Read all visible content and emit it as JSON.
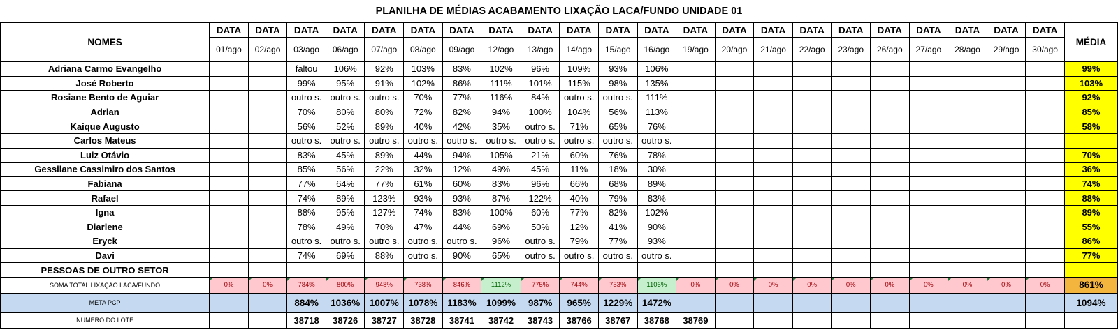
{
  "title": "PLANILHA DE MÉDIAS ACABAMENTO LIXAÇÃO LACA/FUNDO UNIDADE 01",
  "header": {
    "names": "NOMES",
    "data_label": "DATA",
    "media": "MÉDIA",
    "dates": [
      "01/ago",
      "02/ago",
      "03/ago",
      "06/ago",
      "07/ago",
      "08/ago",
      "09/ago",
      "12/ago",
      "13/ago",
      "14/ago",
      "15/ago",
      "16/ago",
      "19/ago",
      "20/ago",
      "21/ago",
      "22/ago",
      "23/ago",
      "26/ago",
      "27/ago",
      "28/ago",
      "29/ago",
      "30/ago"
    ]
  },
  "rows": [
    {
      "name": "Adriana Carmo Evangelho",
      "values": [
        "",
        "",
        "faltou",
        "106%",
        "92%",
        "103%",
        "83%",
        "102%",
        "96%",
        "109%",
        "93%",
        "106%",
        "",
        "",
        "",
        "",
        "",
        "",
        "",
        "",
        "",
        ""
      ],
      "media": "99%"
    },
    {
      "name": "José Roberto",
      "values": [
        "",
        "",
        "99%",
        "95%",
        "91%",
        "102%",
        "86%",
        "111%",
        "101%",
        "115%",
        "98%",
        "135%",
        "",
        "",
        "",
        "",
        "",
        "",
        "",
        "",
        "",
        ""
      ],
      "media": "103%"
    },
    {
      "name": "Rosiane Bento de Aguiar",
      "values": [
        "",
        "",
        "outro s.",
        "outro s.",
        "outro s.",
        "70%",
        "77%",
        "116%",
        "84%",
        "outro s.",
        "outro s.",
        "111%",
        "",
        "",
        "",
        "",
        "",
        "",
        "",
        "",
        "",
        ""
      ],
      "media": "92%"
    },
    {
      "name": "Adrian",
      "values": [
        "",
        "",
        "70%",
        "80%",
        "80%",
        "72%",
        "82%",
        "94%",
        "100%",
        "104%",
        "56%",
        "113%",
        "",
        "",
        "",
        "",
        "",
        "",
        "",
        "",
        "",
        ""
      ],
      "media": "85%"
    },
    {
      "name": "Kaique Augusto",
      "values": [
        "",
        "",
        "56%",
        "52%",
        "89%",
        "40%",
        "42%",
        "35%",
        "outro s.",
        "71%",
        "65%",
        "76%",
        "",
        "",
        "",
        "",
        "",
        "",
        "",
        "",
        "",
        ""
      ],
      "media": "58%"
    },
    {
      "name": "Carlos Mateus",
      "values": [
        "",
        "",
        "outro s.",
        "outro s.",
        "outro s.",
        "outro s.",
        "outro s.",
        "outro s.",
        "outro s.",
        "outro s.",
        "outro s.",
        "outro s.",
        "",
        "",
        "",
        "",
        "",
        "",
        "",
        "",
        "",
        ""
      ],
      "media": ""
    },
    {
      "name": "Luiz Otávio",
      "values": [
        "",
        "",
        "83%",
        "45%",
        "89%",
        "44%",
        "94%",
        "105%",
        "21%",
        "60%",
        "76%",
        "78%",
        "",
        "",
        "",
        "",
        "",
        "",
        "",
        "",
        "",
        ""
      ],
      "media": "70%"
    },
    {
      "name": "Gessilane Cassimiro dos Santos",
      "values": [
        "",
        "",
        "85%",
        "56%",
        "22%",
        "32%",
        "12%",
        "49%",
        "45%",
        "11%",
        "18%",
        "30%",
        "",
        "",
        "",
        "",
        "",
        "",
        "",
        "",
        "",
        ""
      ],
      "media": "36%"
    },
    {
      "name": "Fabiana",
      "values": [
        "",
        "",
        "77%",
        "64%",
        "77%",
        "61%",
        "60%",
        "83%",
        "96%",
        "66%",
        "68%",
        "89%",
        "",
        "",
        "",
        "",
        "",
        "",
        "",
        "",
        "",
        ""
      ],
      "media": "74%"
    },
    {
      "name": "Rafael",
      "values": [
        "",
        "",
        "74%",
        "89%",
        "123%",
        "93%",
        "93%",
        "87%",
        "122%",
        "40%",
        "79%",
        "83%",
        "",
        "",
        "",
        "",
        "",
        "",
        "",
        "",
        "",
        ""
      ],
      "media": "88%"
    },
    {
      "name": "Igna",
      "values": [
        "",
        "",
        "88%",
        "95%",
        "127%",
        "74%",
        "83%",
        "100%",
        "60%",
        "77%",
        "82%",
        "102%",
        "",
        "",
        "",
        "",
        "",
        "",
        "",
        "",
        "",
        ""
      ],
      "media": "89%"
    },
    {
      "name": "Diarlene",
      "values": [
        "",
        "",
        "78%",
        "49%",
        "70%",
        "47%",
        "44%",
        "69%",
        "50%",
        "12%",
        "41%",
        "90%",
        "",
        "",
        "",
        "",
        "",
        "",
        "",
        "",
        "",
        ""
      ],
      "media": "55%"
    },
    {
      "name": "Eryck",
      "values": [
        "",
        "",
        "outro s.",
        "outro s.",
        "outro s.",
        "outro s.",
        "outro s.",
        "96%",
        "outro s.",
        "79%",
        "77%",
        "93%",
        "",
        "",
        "",
        "",
        "",
        "",
        "",
        "",
        "",
        ""
      ],
      "media": "86%"
    },
    {
      "name": "Davi",
      "values": [
        "",
        "",
        "74%",
        "69%",
        "88%",
        "outro s.",
        "90%",
        "65%",
        "outro s.",
        "outro s.",
        "outro s.",
        "outro s.",
        "",
        "",
        "",
        "",
        "",
        "",
        "",
        "",
        "",
        ""
      ],
      "media": "77%"
    },
    {
      "name": "PESSOAS DE OUTRO SETOR",
      "values": [
        "",
        "",
        "",
        "",
        "",
        "",
        "",
        "",
        "",
        "",
        "",
        "",
        "",
        "",
        "",
        "",
        "",
        "",
        "",
        "",
        "",
        ""
      ],
      "media": ""
    }
  ],
  "soma": {
    "label": "SOMA TOTAL LIXAÇÃO LACA/FUNDO",
    "values": [
      "0%",
      "0%",
      "784%",
      "800%",
      "948%",
      "738%",
      "846%",
      "1112%",
      "775%",
      "744%",
      "753%",
      "1106%",
      "0%",
      "0%",
      "0%",
      "0%",
      "0%",
      "0%",
      "0%",
      "0%",
      "0%",
      "0%"
    ],
    "media": "861%",
    "colors": {
      "red_bg": "#ffc7ce",
      "green_bg": "#c6efce",
      "media_bg": "#f4b53f"
    }
  },
  "meta": {
    "label": "META PCP",
    "values": [
      "",
      "",
      "884%",
      "1036%",
      "1007%",
      "1078%",
      "1183%",
      "1099%",
      "987%",
      "965%",
      "1229%",
      "1472%",
      "",
      "",
      "",
      "",
      "",
      "",
      "",
      "",
      "",
      ""
    ],
    "media": "1094%"
  },
  "lote": {
    "label": "NUMERO DO LOTE",
    "values": [
      "",
      "",
      "38718",
      "38726",
      "38727",
      "38728",
      "38741",
      "38742",
      "38743",
      "38766",
      "38767",
      "38768",
      "38769",
      "",
      "",
      "",
      "",
      "",
      "",
      "",
      "",
      ""
    ]
  }
}
